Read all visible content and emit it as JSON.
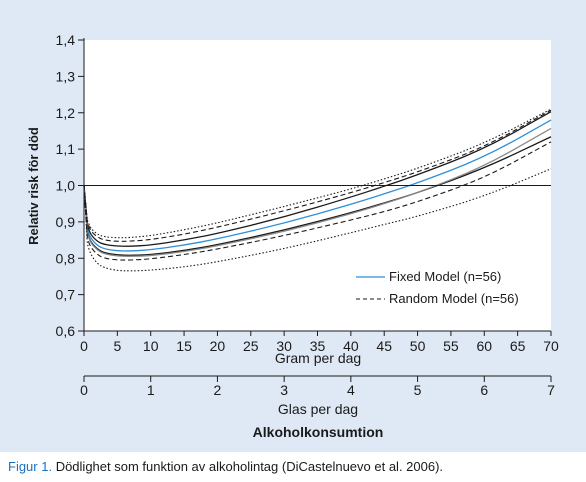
{
  "chart_data": {
    "type": "line",
    "title": "",
    "ylabel": "Relativ risk för död",
    "xlabel": "Gram per dag",
    "xlim": [
      0,
      70
    ],
    "ylim": [
      0.6,
      1.4
    ],
    "xticks": [
      "0",
      "5",
      "10",
      "15",
      "20",
      "25",
      "30",
      "35",
      "40",
      "45",
      "50",
      "55",
      "60",
      "65",
      "70"
    ],
    "yticks": [
      "0,6",
      "0,7",
      "0,8",
      "0,9",
      "1,0",
      "1,1",
      "1,2",
      "1,3",
      "1,4"
    ],
    "reference_line": 1.0,
    "secondary_axis": {
      "label": "Glas per dag",
      "ticks": [
        "0",
        "1",
        "2",
        "3",
        "4",
        "5",
        "6",
        "7"
      ],
      "xlim": [
        0,
        7
      ]
    },
    "bottom_label": "Alkoholkonsumtion",
    "legend": {
      "placement": "bottom-right",
      "entries": [
        "Fixed Model (n=56)",
        "Random Model (n=56)"
      ]
    },
    "series": [
      {
        "name": "Fixed Model (n=56)",
        "style": "solid",
        "color": "#2f8fd8",
        "x": [
          0,
          0.5,
          1,
          2,
          3,
          5,
          7,
          10,
          15,
          20,
          30,
          40,
          45,
          50,
          60,
          70
        ],
        "y": [
          1.0,
          0.88,
          0.855,
          0.835,
          0.826,
          0.82,
          0.82,
          0.823,
          0.836,
          0.853,
          0.896,
          0.948,
          0.977,
          1.007,
          1.077,
          1.18
        ]
      },
      {
        "style": "solid",
        "color": "#1a1a1a",
        "x": [
          0,
          0.5,
          1,
          2,
          3,
          5,
          7,
          10,
          15,
          20,
          30,
          40,
          45,
          50,
          60,
          70
        ],
        "y": [
          1.0,
          0.89,
          0.865,
          0.846,
          0.838,
          0.833,
          0.833,
          0.836,
          0.85,
          0.868,
          0.913,
          0.968,
          0.998,
          1.029,
          1.1,
          1.203
        ]
      },
      {
        "style": "solid",
        "color": "#1a1a1a",
        "x": [
          0,
          0.5,
          1,
          2,
          3,
          5,
          7,
          10,
          15,
          20,
          30,
          40,
          45,
          50,
          60,
          70
        ],
        "y": [
          1.0,
          0.87,
          0.845,
          0.825,
          0.815,
          0.809,
          0.808,
          0.81,
          0.821,
          0.837,
          0.877,
          0.925,
          0.952,
          0.98,
          1.047,
          1.134
        ]
      },
      {
        "style": "solid",
        "color": "#8a8a8a",
        "x": [
          0,
          0.5,
          1,
          2,
          3,
          5,
          7,
          10,
          15,
          20,
          30,
          40,
          45,
          50,
          60,
          70
        ],
        "y": [
          1.0,
          0.867,
          0.842,
          0.822,
          0.812,
          0.806,
          0.805,
          0.807,
          0.818,
          0.834,
          0.873,
          0.922,
          0.95,
          0.98,
          1.052,
          1.157
        ]
      },
      {
        "name": "Random Model (n=56)",
        "style": "dashed",
        "color": "#1a1a1a",
        "x": [
          0,
          0.5,
          1,
          2,
          3,
          5,
          7,
          10,
          15,
          20,
          30,
          40,
          45,
          50,
          60,
          70
        ],
        "y": [
          1.0,
          0.855,
          0.83,
          0.81,
          0.8,
          0.795,
          0.795,
          0.798,
          0.81,
          0.825,
          0.862,
          0.905,
          0.928,
          0.955,
          1.02,
          1.12
        ]
      },
      {
        "style": "dashed",
        "color": "#1a1a1a",
        "x": [
          0,
          0.5,
          1,
          2,
          3,
          5,
          7,
          10,
          15,
          20,
          30,
          40,
          45,
          50,
          60,
          70
        ],
        "y": [
          1.0,
          0.9,
          0.875,
          0.858,
          0.85,
          0.846,
          0.847,
          0.851,
          0.866,
          0.885,
          0.93,
          0.98,
          1.008,
          1.037,
          1.105,
          1.207
        ]
      },
      {
        "style": "dotted",
        "color": "#1a1a1a",
        "x": [
          0,
          0.5,
          1,
          2,
          3,
          5,
          7,
          10,
          15,
          20,
          30,
          40,
          45,
          50,
          60,
          70
        ],
        "y": [
          1.0,
          0.84,
          0.81,
          0.785,
          0.774,
          0.766,
          0.765,
          0.767,
          0.776,
          0.79,
          0.826,
          0.87,
          0.893,
          0.915,
          0.97,
          1.046
        ]
      },
      {
        "style": "dotted",
        "color": "#1a1a1a",
        "x": [
          0,
          0.5,
          1,
          2,
          3,
          5,
          7,
          10,
          15,
          20,
          30,
          40,
          45,
          50,
          60,
          70
        ],
        "y": [
          1.0,
          0.905,
          0.882,
          0.866,
          0.859,
          0.856,
          0.857,
          0.862,
          0.878,
          0.897,
          0.942,
          0.99,
          1.018,
          1.047,
          1.115,
          1.21
        ]
      }
    ]
  },
  "caption": {
    "label": "Figur 1.",
    "text": " Dödlighet som funktion av alkoholintag (DiCastelnuevo et al. 2006)."
  }
}
